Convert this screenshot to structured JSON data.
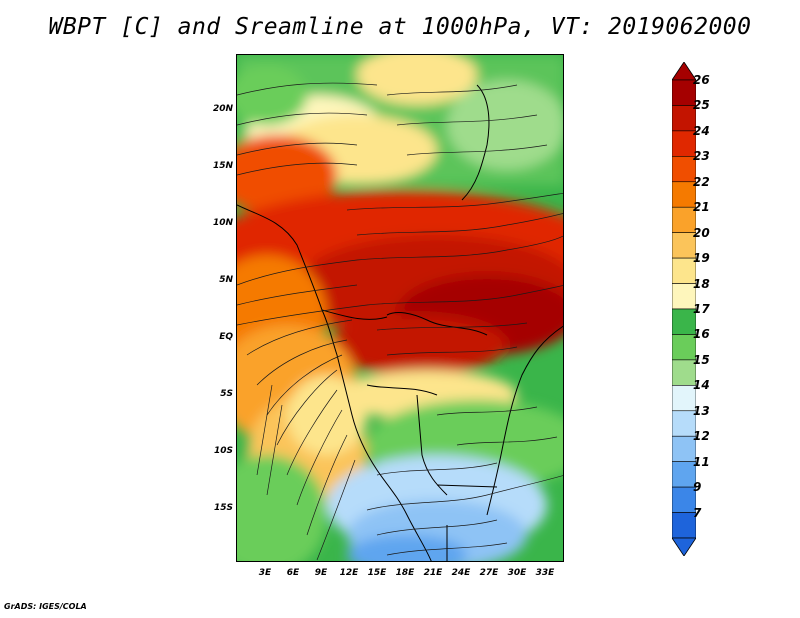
{
  "title": "WBPT [C] and Sreamline at 1000hPa, VT: 2019062000",
  "footer": "GrADS: IGES/COLA",
  "lat_labels": [
    "20N",
    "15N",
    "10N",
    "5N",
    "EQ",
    "5S",
    "10S",
    "15S"
  ],
  "lon_labels": [
    "3E",
    "6E",
    "9E",
    "12E",
    "15E",
    "18E",
    "21E",
    "24E",
    "27E",
    "30E",
    "33E"
  ],
  "colorbar": {
    "labels": [
      "26",
      "25",
      "24",
      "23",
      "22",
      "21",
      "20",
      "19",
      "18",
      "17",
      "16",
      "15",
      "14",
      "13",
      "12",
      "11",
      "9",
      "7"
    ],
    "colors": [
      "#a50000",
      "#c31400",
      "#e02800",
      "#f04e00",
      "#f57a00",
      "#faa22a",
      "#fbc45a",
      "#fde58c",
      "#fef6bc",
      "#3ab54a",
      "#6acd5a",
      "#9fdc8c",
      "#e2f5fb",
      "#b6dcfa",
      "#8ec3f5",
      "#5fa5ef",
      "#3b86e8",
      "#1e64db"
    ]
  },
  "map": {
    "type": "filled contour with streamlines",
    "variable": "WBPT",
    "units": "C",
    "level": "1000hPa",
    "valid_time": "2019062000"
  }
}
